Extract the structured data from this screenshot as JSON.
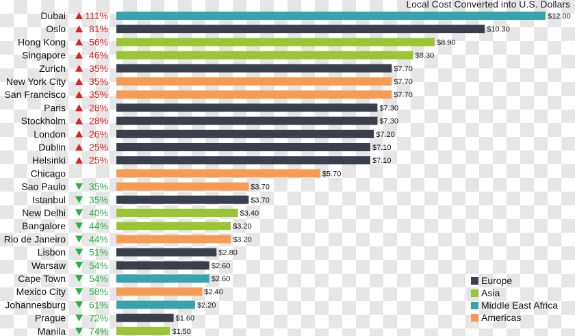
{
  "chart_data": {
    "type": "bar",
    "orientation": "horizontal",
    "title": "Local Cost Converted into U.S. Dollars",
    "colors": {
      "Europe": "#3a3f4c",
      "Asia": "#9cc536",
      "Middle East Africa": "#38a2ae",
      "Americas": "#f79a52",
      "up": "#e02020",
      "down": "#2ab24a"
    },
    "legend": {
      "position": "bottom-right",
      "entries": [
        "Europe",
        "Asia",
        "Middle East Africa",
        "Americas"
      ]
    },
    "xlim": [
      0,
      12
    ],
    "grid": false,
    "categories": [
      "Dubai",
      "Oslo",
      "Hong Kong",
      "Singapore",
      "Zurich",
      "New York City",
      "San Francisco",
      "Paris",
      "Stockholm",
      "London",
      "Dublin",
      "Helsinki",
      "Chicago",
      "Sao Paulo",
      "Istanbul",
      "New Delhi",
      "Bangalore",
      "Rio de Janeiro",
      "Lisbon",
      "Warsaw",
      "Cape Town",
      "Mexico City",
      "Johannesburg",
      "Prague",
      "Manila"
    ],
    "values": [
      12.0,
      10.3,
      8.9,
      8.3,
      7.7,
      7.7,
      7.7,
      7.3,
      7.3,
      7.2,
      7.1,
      7.1,
      5.7,
      3.7,
      3.7,
      3.4,
      3.2,
      3.2,
      2.8,
      2.6,
      2.6,
      2.4,
      2.2,
      1.6,
      1.5
    ],
    "value_labels": [
      "$12.00",
      "$10.30",
      "$8.90",
      "$8.30",
      "$7.70",
      "$7.70",
      "$7.70",
      "$7.30",
      "$7.30",
      "$7.20",
      "$7.10",
      "$7.10",
      "$5.70",
      "$3.70",
      "$3.70",
      "$3.40",
      "$3.20",
      "$3.20",
      "$2.80",
      "$2.60",
      "$2.60",
      "$2.40",
      "$2.20",
      "$1.60",
      "$1.50"
    ],
    "regions": [
      "Middle East Africa",
      "Europe",
      "Asia",
      "Asia",
      "Europe",
      "Americas",
      "Americas",
      "Europe",
      "Europe",
      "Europe",
      "Europe",
      "Europe",
      "Americas",
      "Americas",
      "Europe",
      "Asia",
      "Asia",
      "Americas",
      "Europe",
      "Europe",
      "Middle East Africa",
      "Americas",
      "Middle East Africa",
      "Europe",
      "Asia"
    ],
    "change_direction": [
      "up",
      "up",
      "up",
      "up",
      "up",
      "up",
      "up",
      "up",
      "up",
      "up",
      "up",
      "up",
      "none",
      "down",
      "down",
      "down",
      "down",
      "down",
      "down",
      "down",
      "down",
      "down",
      "down",
      "down",
      "down"
    ],
    "change_percent": [
      "111%",
      "81%",
      "56%",
      "46%",
      "35%",
      "35%",
      "35%",
      "28%",
      "28%",
      "26%",
      "25%",
      "25%",
      "",
      "35%",
      "35%",
      "40%",
      "44%",
      "44%",
      "51%",
      "54%",
      "54%",
      "58%",
      "61%",
      "72%",
      "74%"
    ]
  }
}
